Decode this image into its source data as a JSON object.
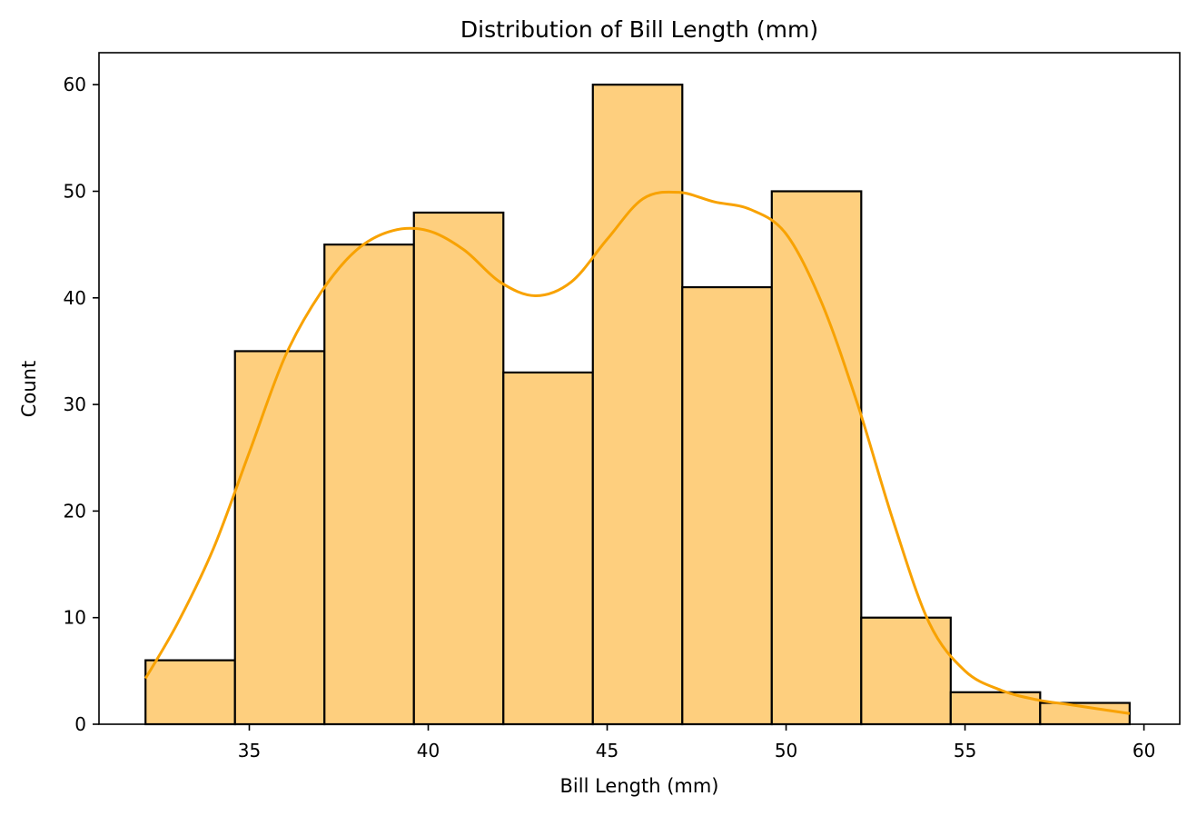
{
  "chart_data": {
    "type": "bar",
    "title": "Distribution of Bill Length (mm)",
    "xlabel": "Bill Length (mm)",
    "ylabel": "Count",
    "xlim": [
      30.8,
      61.0
    ],
    "ylim": [
      0,
      63
    ],
    "x_ticks": [
      35,
      40,
      45,
      50,
      55,
      60
    ],
    "y_ticks": [
      0,
      10,
      20,
      30,
      40,
      50,
      60
    ],
    "bins": [
      {
        "x0": 32.1,
        "x1": 34.6,
        "count": 6
      },
      {
        "x0": 34.6,
        "x1": 37.1,
        "count": 35
      },
      {
        "x0": 37.1,
        "x1": 39.6,
        "count": 45
      },
      {
        "x0": 39.6,
        "x1": 42.1,
        "count": 48
      },
      {
        "x0": 42.1,
        "x1": 44.6,
        "count": 33
      },
      {
        "x0": 44.6,
        "x1": 47.1,
        "count": 60
      },
      {
        "x0": 47.1,
        "x1": 49.6,
        "count": 41
      },
      {
        "x0": 49.6,
        "x1": 52.1,
        "count": 50
      },
      {
        "x0": 52.1,
        "x1": 54.6,
        "count": 10
      },
      {
        "x0": 54.6,
        "x1": 57.1,
        "count": 3
      },
      {
        "x0": 57.1,
        "x1": 59.6,
        "count": 2
      }
    ],
    "kde": {
      "x": [
        32.1,
        33.0,
        34.0,
        35.0,
        36.0,
        37.0,
        38.0,
        39.0,
        40.0,
        41.0,
        42.0,
        43.0,
        44.0,
        45.0,
        46.0,
        47.0,
        48.0,
        49.0,
        50.0,
        51.0,
        52.0,
        53.0,
        54.0,
        55.0,
        56.0,
        57.0,
        58.0,
        59.6
      ],
      "y": [
        4.3,
        9.5,
        16.5,
        25.5,
        34.5,
        40.5,
        44.5,
        46.3,
        46.3,
        44.5,
        41.5,
        40.2,
        41.5,
        45.5,
        49.3,
        49.9,
        49.0,
        48.3,
        46.0,
        39.5,
        30.0,
        19.0,
        9.5,
        5.0,
        3.2,
        2.3,
        1.8,
        1.0
      ]
    },
    "grid": false,
    "colors": {
      "bar_fill": "#fecf7e",
      "bar_edge": "#000000",
      "kde_line": "#f8a201"
    }
  }
}
